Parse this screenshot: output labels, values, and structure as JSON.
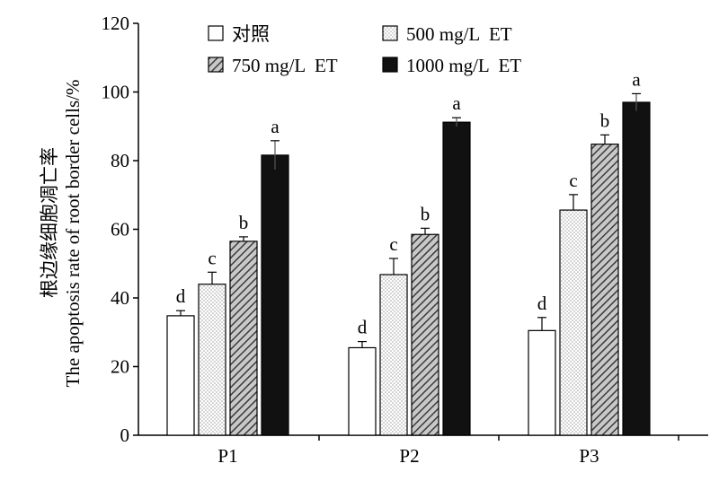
{
  "chart_data": {
    "type": "bar",
    "categories": [
      "P1",
      "P2",
      "P3"
    ],
    "series": [
      {
        "name": "对照",
        "pattern": "white",
        "values": [
          34.8,
          25.5,
          30.5
        ],
        "errors": [
          1.5,
          1.8,
          3.8
        ],
        "labels": [
          "d",
          "d",
          "d"
        ]
      },
      {
        "name": "500 mg/L  ET",
        "pattern": "dots",
        "values": [
          44.0,
          46.8,
          65.6
        ],
        "errors": [
          3.5,
          4.7,
          4.5
        ],
        "labels": [
          "c",
          "c",
          "c"
        ]
      },
      {
        "name": "750 mg/L  ET",
        "pattern": "hatch",
        "values": [
          56.5,
          58.5,
          84.8
        ],
        "errors": [
          1.3,
          1.8,
          2.7
        ],
        "labels": [
          "b",
          "b",
          "b"
        ]
      },
      {
        "name": "1000 mg/L  ET",
        "pattern": "black",
        "values": [
          81.6,
          91.2,
          97.0
        ],
        "errors": [
          4.2,
          1.3,
          2.5
        ],
        "labels": [
          "a",
          "a",
          "a"
        ]
      }
    ],
    "ylim": [
      0,
      120
    ],
    "yticks": [
      0,
      20,
      40,
      60,
      80,
      100,
      120
    ],
    "ylabel_line1": "根边缘细胞凋亡率",
    "ylabel_line2": "The apoptosis rate of  root border cells/%",
    "xlabel": "",
    "title": "",
    "legend_position": "top",
    "grid": false
  },
  "colors": {
    "axis": "#000000",
    "bar_white": "#ffffff",
    "bar_black": "#111111",
    "pattern_dots": "#9a9a9a",
    "pattern_hatch": "#3a3a3a"
  }
}
